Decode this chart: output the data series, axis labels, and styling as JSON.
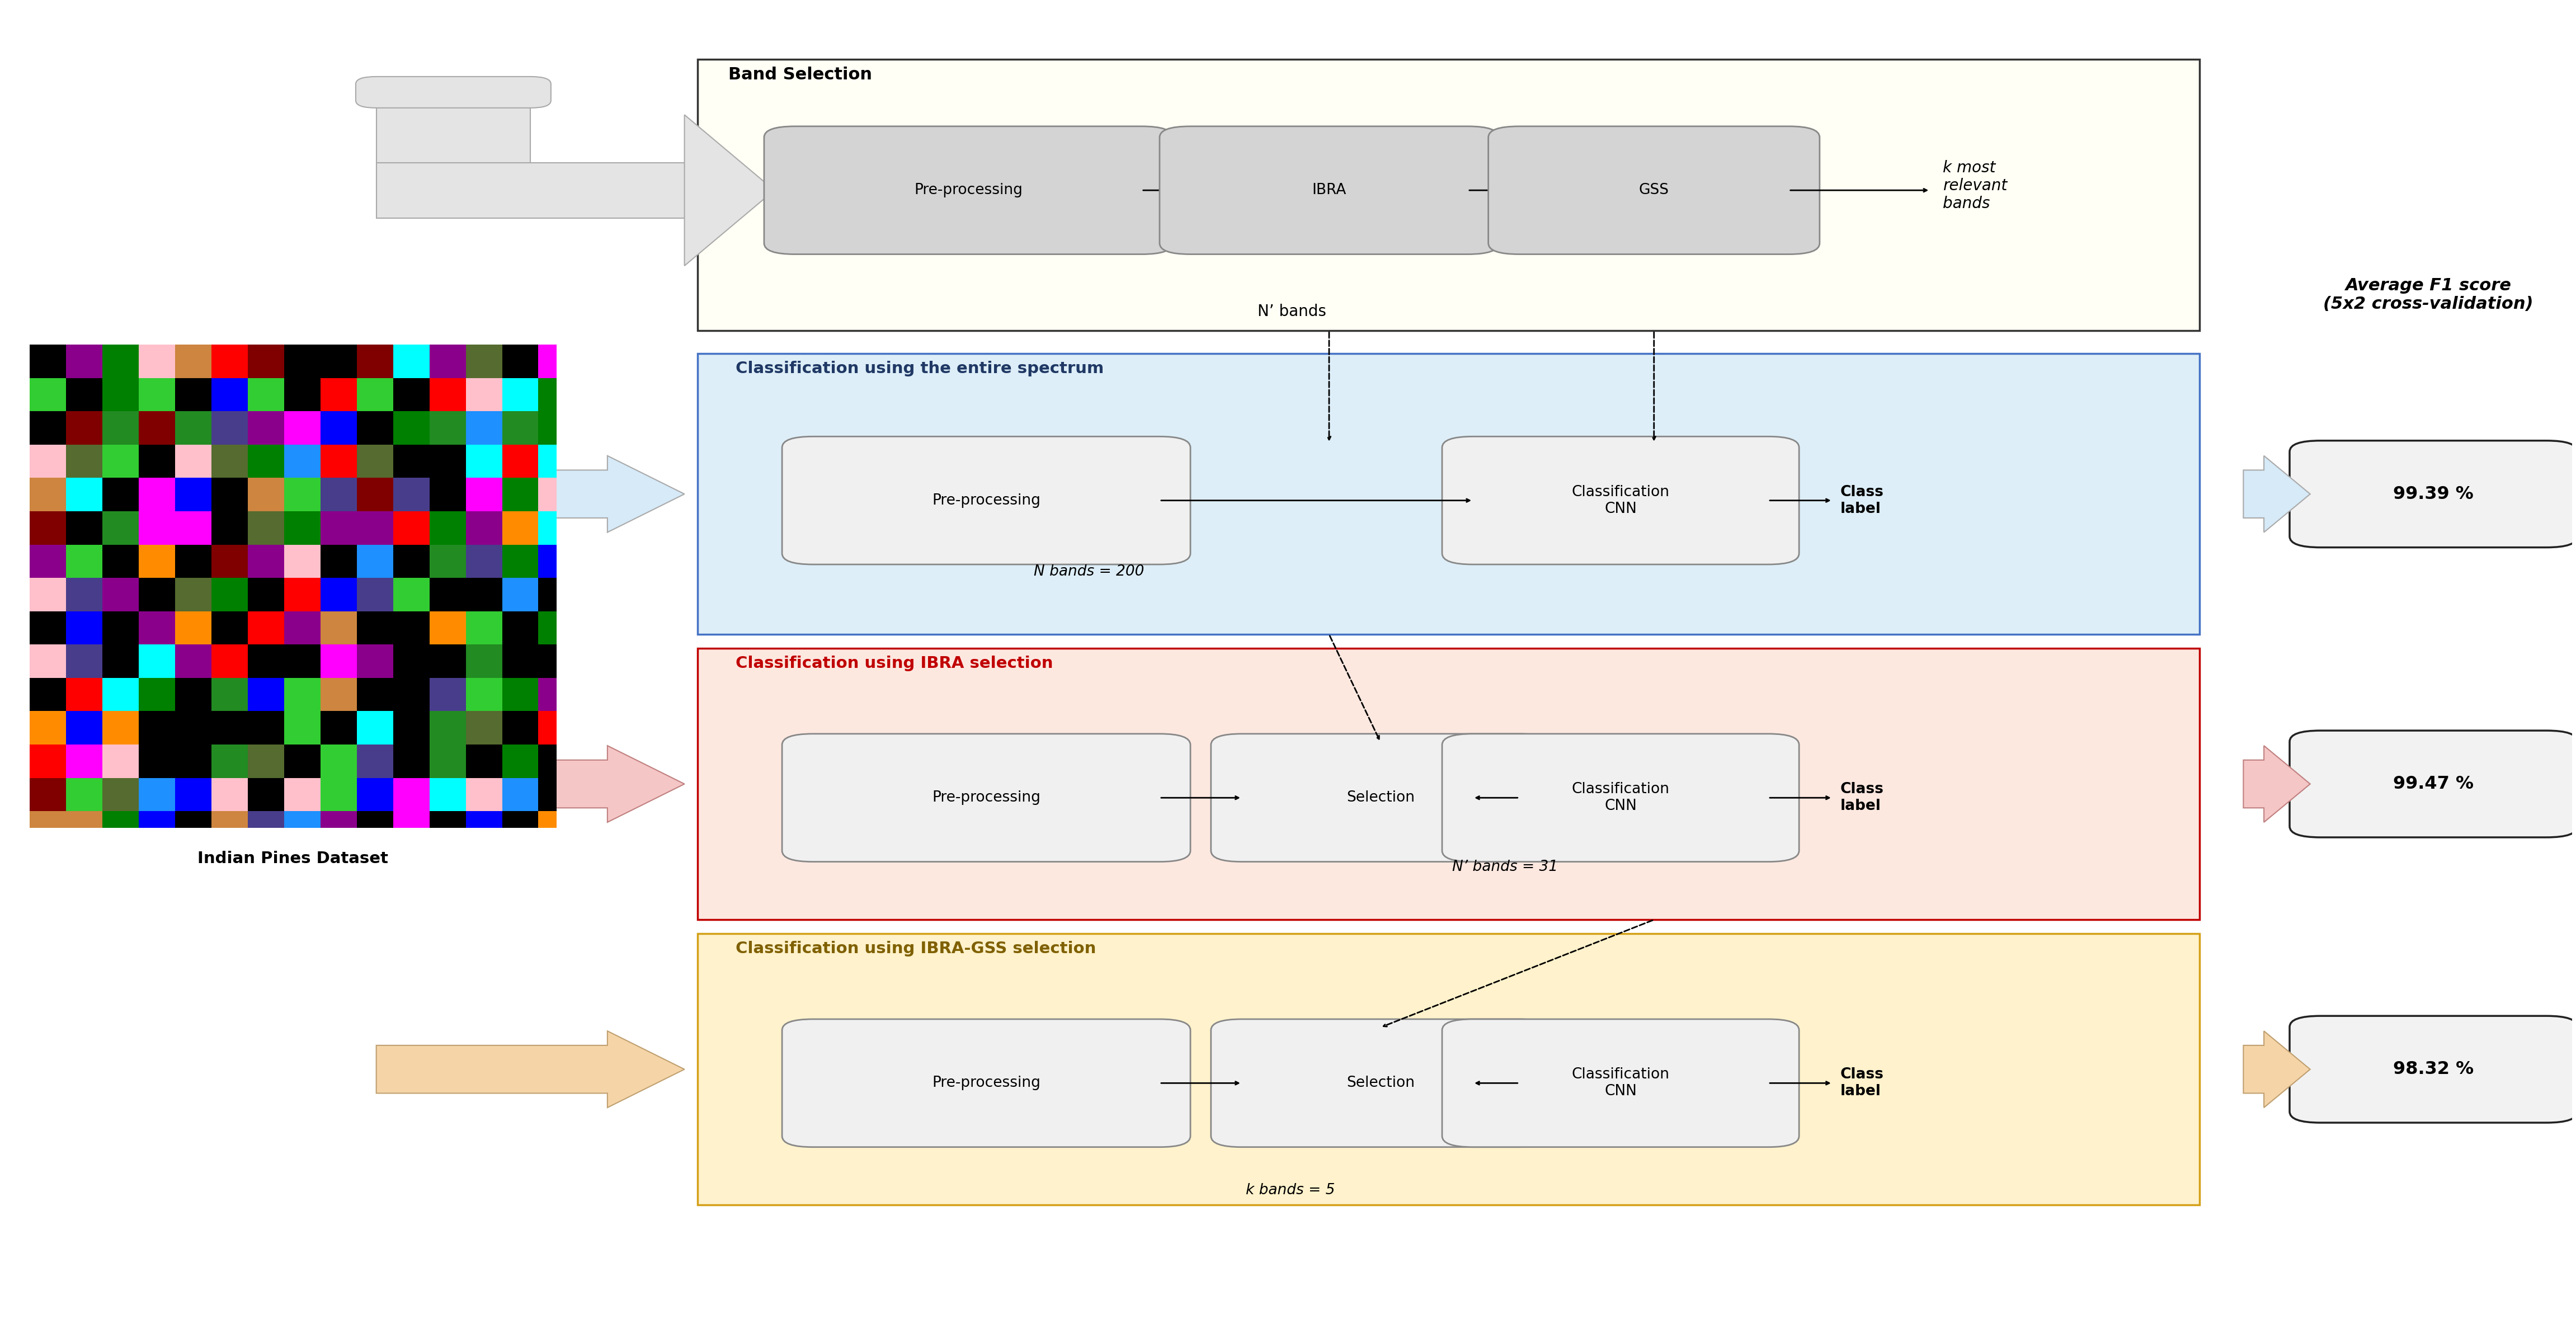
{
  "fig_width": 46.05,
  "fig_height": 23.67,
  "bg_color": "#ffffff",
  "score1": "99.39 %",
  "score2": "99.47 %",
  "score3": "98.32 %",
  "arrow_colors": {
    "top": "#e0e0e0",
    "blue": "#d6eaf8",
    "red": "#f5c6c6",
    "yellow": "#f5d5a8"
  },
  "clist": [
    "#000000",
    "#ff00ff",
    "#228b22",
    "#556b2f",
    "#008000",
    "#800000",
    "#ff0000",
    "#0000ff",
    "#1e90ff",
    "#00ffff",
    "#ffc0cb",
    "#8b008b",
    "#483d8b",
    "#ff8c00",
    "#32cd32",
    "#cd853f"
  ]
}
